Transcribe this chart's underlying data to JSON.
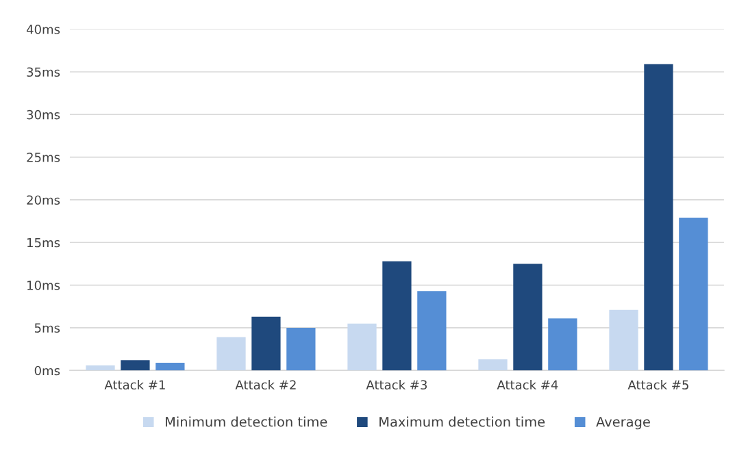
{
  "chart_data": {
    "type": "bar",
    "categories": [
      "Attack #1",
      "Attack #2",
      "Attack #3",
      "Attack #4",
      "Attack #5"
    ],
    "series": [
      {
        "name": "Minimum detection time",
        "color": "#c7d9f0",
        "values": [
          0.6,
          3.9,
          5.5,
          1.3,
          7.1
        ]
      },
      {
        "name": "Maximum detection time",
        "color": "#1f497d",
        "values": [
          1.2,
          6.3,
          12.8,
          12.5,
          35.9
        ]
      },
      {
        "name": "Average",
        "color": "#558ed5",
        "values": [
          0.9,
          5.0,
          9.3,
          6.1,
          17.9
        ]
      }
    ],
    "ylim": [
      0,
      40
    ],
    "yticks": [
      {
        "value": 0,
        "label": "0ms"
      },
      {
        "value": 5,
        "label": "5ms"
      },
      {
        "value": 10,
        "label": "10ms"
      },
      {
        "value": 15,
        "label": "15ms"
      },
      {
        "value": 20,
        "label": "20ms"
      },
      {
        "value": 25,
        "label": "25ms"
      },
      {
        "value": 30,
        "label": "30ms"
      },
      {
        "value": 35,
        "label": "35ms"
      },
      {
        "value": 40,
        "label": "40ms"
      }
    ],
    "grid": "y",
    "legend": "bottom"
  }
}
